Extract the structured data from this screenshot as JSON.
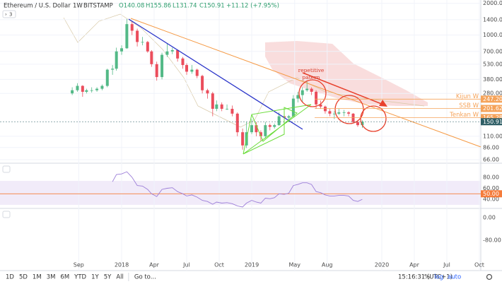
{
  "header": {
    "symbol": "Ethereum / U.S. Dollar",
    "interval": "1W",
    "exchange": "BITSTAMP",
    "quote": [
      "O140.08",
      "H155.86",
      "L131.74",
      "C150.91"
    ],
    "change": "+11.12 (+7.95%)",
    "collapsed": "3"
  },
  "chart_data": {
    "type": "candlestick",
    "log_scale": true,
    "up_color": "#53b987",
    "down_color": "#eb4d5c",
    "x": [
      2017.62,
      2017.66,
      2017.7,
      2017.73,
      2017.77,
      2017.81,
      2017.85,
      2017.89,
      2017.93,
      2017.96,
      2018.0,
      2018.04,
      2018.08,
      2018.12,
      2018.16,
      2018.2,
      2018.23,
      2018.27,
      2018.31,
      2018.35,
      2018.39,
      2018.43,
      2018.47,
      2018.5,
      2018.54,
      2018.58,
      2018.62,
      2018.66,
      2018.7,
      2018.73,
      2018.77,
      2018.81,
      2018.85,
      2018.89,
      2018.93,
      2018.96,
      2019.0,
      2019.035,
      2019.07,
      2019.105,
      2019.14,
      2019.175,
      2019.21,
      2019.25,
      2019.285,
      2019.32,
      2019.355,
      2019.39,
      2019.425,
      2019.46,
      2019.495,
      2019.53,
      2019.565,
      2019.6,
      2019.635,
      2019.67,
      2019.71,
      2019.745,
      2019.78,
      2019.815,
      2019.85
    ],
    "open": [
      280,
      300,
      330,
      290,
      300,
      300,
      310,
      330,
      470,
      480,
      700,
      750,
      1270,
      1100,
      860,
      860,
      700,
      530,
      400,
      650,
      700,
      720,
      600,
      520,
      450,
      470,
      410,
      300,
      280,
      200,
      220,
      200,
      200,
      180,
      120,
      90,
      120,
      140,
      120,
      110,
      140,
      135,
      140,
      170,
      165,
      170,
      250,
      270,
      300,
      310,
      290,
      220,
      210,
      190,
      180,
      180,
      185,
      185,
      180,
      150,
      140.08
    ],
    "high": [
      320,
      350,
      335,
      310,
      320,
      320,
      340,
      480,
      520,
      760,
      800,
      1420,
      1350,
      1150,
      960,
      880,
      720,
      560,
      680,
      830,
      760,
      730,
      620,
      540,
      520,
      480,
      420,
      310,
      290,
      240,
      230,
      220,
      215,
      185,
      130,
      150,
      160,
      150,
      125,
      150,
      145,
      145,
      185,
      180,
      175,
      270,
      290,
      320,
      365,
      320,
      300,
      240,
      215,
      200,
      190,
      200,
      195,
      190,
      182,
      155,
      155.86
    ],
    "low": [
      270,
      290,
      260,
      280,
      285,
      290,
      300,
      320,
      420,
      460,
      650,
      740,
      1000,
      780,
      800,
      680,
      500,
      370,
      380,
      620,
      660,
      560,
      480,
      420,
      430,
      390,
      280,
      250,
      170,
      190,
      190,
      195,
      170,
      110,
      82,
      85,
      115,
      110,
      100,
      105,
      125,
      130,
      138,
      155,
      150,
      165,
      230,
      230,
      290,
      270,
      200,
      200,
      180,
      170,
      160,
      175,
      170,
      170,
      145,
      135,
      131.74
    ],
    "close": [
      300,
      330,
      290,
      300,
      300,
      310,
      330,
      470,
      480,
      700,
      750,
      1270,
      1100,
      860,
      860,
      700,
      530,
      400,
      650,
      700,
      720,
      600,
      520,
      450,
      470,
      410,
      300,
      280,
      200,
      220,
      200,
      200,
      180,
      120,
      90,
      120,
      140,
      120,
      110,
      140,
      135,
      140,
      170,
      165,
      170,
      250,
      270,
      300,
      310,
      290,
      220,
      210,
      190,
      180,
      180,
      185,
      185,
      180,
      150,
      140.08,
      150.91
    ],
    "xlim": [
      2017.065,
      2020.761
    ],
    "xticks": [
      {
        "value": 2017.67,
        "label": "Sep"
      },
      2018,
      {
        "value": 2018.25,
        "label": "Apr"
      },
      {
        "value": 2018.5,
        "label": "Jul"
      },
      {
        "value": 2018.75,
        "label": "Oct"
      },
      2019,
      {
        "value": 2019.33,
        "label": "May"
      },
      {
        "value": 2019.58,
        "label": "Aug"
      },
      2020,
      {
        "value": 2020.25,
        "label": "Apr"
      },
      {
        "value": 2020.5,
        "label": "Jul"
      },
      {
        "value": 2020.75,
        "label": "Oct"
      }
    ],
    "ylim": [
      62,
      2150
    ],
    "yticks": [
      {
        "value": 2000,
        "label": "2000.00"
      },
      {
        "value": 1400,
        "label": "1400.00"
      },
      {
        "value": 1000,
        "label": "1000.00"
      },
      {
        "value": 700,
        "label": "700.00"
      },
      {
        "value": 530,
        "label": "530.00"
      },
      {
        "value": 380,
        "label": "380.00"
      },
      {
        "value": 280,
        "label": "280.00"
      },
      {
        "value": 110,
        "label": "110.00"
      },
      {
        "value": 86,
        "label": "86.00"
      },
      {
        "value": 66,
        "label": "66.00"
      }
    ],
    "price_labels": [
      {
        "name": "Kijun W",
        "value": 247.2,
        "value_label": "247.20",
        "color": "#f5a35a"
      },
      {
        "name": "SSB W",
        "value": 201.62,
        "value_label": "201.62",
        "color": "#f5a35a"
      },
      {
        "name": "Tenkan W",
        "value": 165.28,
        "value_label": "165.28",
        "color": "#f5a35a"
      },
      {
        "value": 150.91,
        "value_label": "150.91",
        "color": "#2f5f66"
      }
    ],
    "annotation": [
      "repetitive",
      "patern"
    ],
    "rsi": {
      "color": "#9c7ed8",
      "values": [
        null,
        null,
        null,
        null,
        null,
        null,
        null,
        null,
        72,
        85,
        86,
        90,
        80,
        65,
        64,
        58,
        50,
        45,
        58,
        60,
        61,
        54,
        50,
        46,
        48,
        44,
        38,
        36,
        31,
        35,
        33,
        34,
        32,
        28,
        26,
        33,
        38,
        35,
        33,
        42,
        41,
        43,
        50,
        49,
        51,
        65,
        67,
        70,
        70,
        67,
        54,
        52,
        48,
        46,
        46,
        47,
        47,
        46,
        38,
        36,
        40
      ],
      "ylim": [
        26,
        103
      ],
      "yticks": [
        {
          "value": 80,
          "label": "80.00"
        },
        {
          "value": 60,
          "label": "60.00"
        },
        {
          "value": 40,
          "label": "40.00"
        }
      ],
      "level": {
        "value": 50,
        "label": "50.00",
        "color": "#f57c3b"
      }
    },
    "macd": {
      "ylim": [
        -180,
        27.5
      ],
      "yticks": [
        {
          "value": 0,
          "label": "0.00"
        },
        {
          "value": -80,
          "label": "-80.00"
        }
      ]
    }
  },
  "toolbar": {
    "ranges": [
      "1D",
      "5D",
      "1M",
      "3M",
      "6M",
      "YTD",
      "1Y",
      "5Y",
      "All"
    ],
    "goto": "Go to...",
    "time": "15:16:31 (UTC+1)",
    "options": [
      "%",
      "log",
      "auto"
    ]
  }
}
